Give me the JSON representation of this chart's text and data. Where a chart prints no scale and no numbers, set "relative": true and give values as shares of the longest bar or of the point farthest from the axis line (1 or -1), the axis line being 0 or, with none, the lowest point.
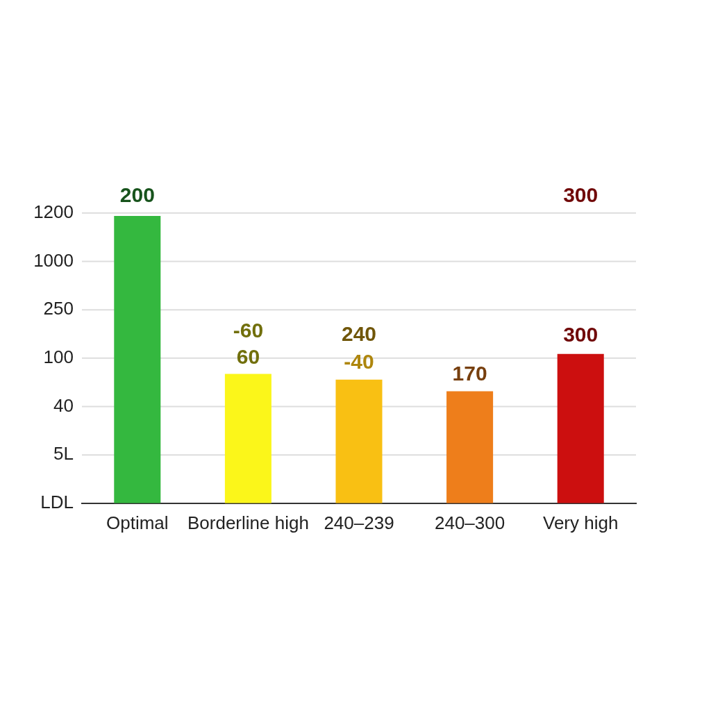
{
  "chart_data": {
    "type": "bar",
    "relative": true,
    "categories": [
      "Optimal",
      "Borderline high",
      "240–239",
      "240–300",
      "Very high"
    ],
    "values": [
      1,
      0.45,
      0.43,
      0.39,
      0.52
    ],
    "colors": [
      "#34b83f",
      "#fbf61a",
      "#f9c013",
      "#ee7e1b",
      "#cc0f0f"
    ],
    "grid": "y",
    "annotations": [
      "1200",
      "1000",
      "250",
      "100",
      "40",
      "5L",
      "LDL",
      "200",
      "-60",
      "60",
      "240",
      "-40",
      "170",
      "300",
      "300"
    ]
  }
}
